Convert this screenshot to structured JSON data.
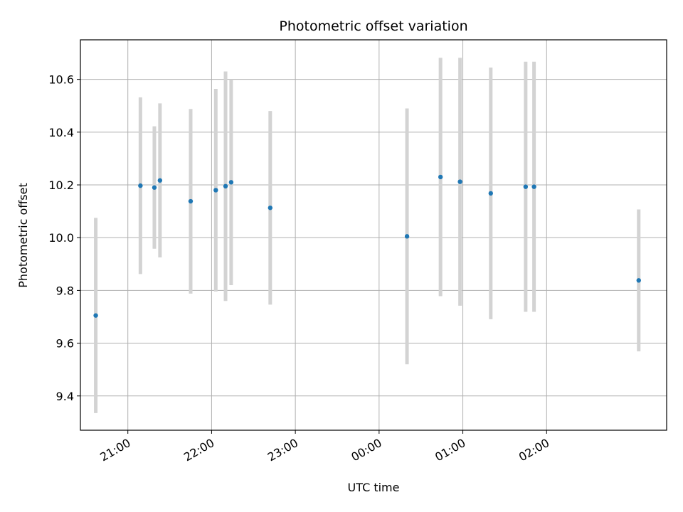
{
  "chart_data": {
    "type": "scatter",
    "title": "Photometric offset variation",
    "xlabel": "UTC time",
    "ylabel": "Photometric offset",
    "grid": true,
    "xlim": [
      "20:26",
      "03:26"
    ],
    "ylim": [
      9.27,
      10.75
    ],
    "x_tick_labels": [
      "21:00",
      "22:00",
      "23:00",
      "00:00",
      "01:00",
      "02:00"
    ],
    "x_ticks": [
      "21:00",
      "22:00",
      "23:00",
      "00:00",
      "01:00",
      "02:00"
    ],
    "y_ticks": [
      9.4,
      9.6,
      9.8,
      10.0,
      10.2,
      10.4,
      10.6
    ],
    "y_tick_labels": [
      "9.4",
      "9.6",
      "9.8",
      "10.0",
      "10.2",
      "10.4",
      "10.6"
    ],
    "point_color": "#1f77b4",
    "errorbar_color": "#d3d3d3",
    "points": [
      {
        "x": "20:37",
        "y": 9.705,
        "err": 0.37
      },
      {
        "x": "21:09",
        "y": 10.197,
        "err": 0.335
      },
      {
        "x": "21:19",
        "y": 10.19,
        "err": 0.232
      },
      {
        "x": "21:23",
        "y": 10.217,
        "err": 0.292
      },
      {
        "x": "21:45",
        "y": 10.138,
        "err": 0.35
      },
      {
        "x": "22:03",
        "y": 10.18,
        "err": 0.384
      },
      {
        "x": "22:10",
        "y": 10.195,
        "err": 0.435
      },
      {
        "x": "22:14",
        "y": 10.21,
        "err": 0.39
      },
      {
        "x": "22:42",
        "y": 10.113,
        "err": 0.367
      },
      {
        "x": "00:20",
        "y": 10.005,
        "err": 0.485
      },
      {
        "x": "00:44",
        "y": 10.23,
        "err": 0.452
      },
      {
        "x": "00:58",
        "y": 10.212,
        "err": 0.47
      },
      {
        "x": "01:20",
        "y": 10.168,
        "err": 0.477
      },
      {
        "x": "01:45",
        "y": 10.193,
        "err": 0.474
      },
      {
        "x": "01:51",
        "y": 10.193,
        "err": 0.474
      },
      {
        "x": "03:06",
        "y": 9.838,
        "err": 0.269
      }
    ]
  }
}
